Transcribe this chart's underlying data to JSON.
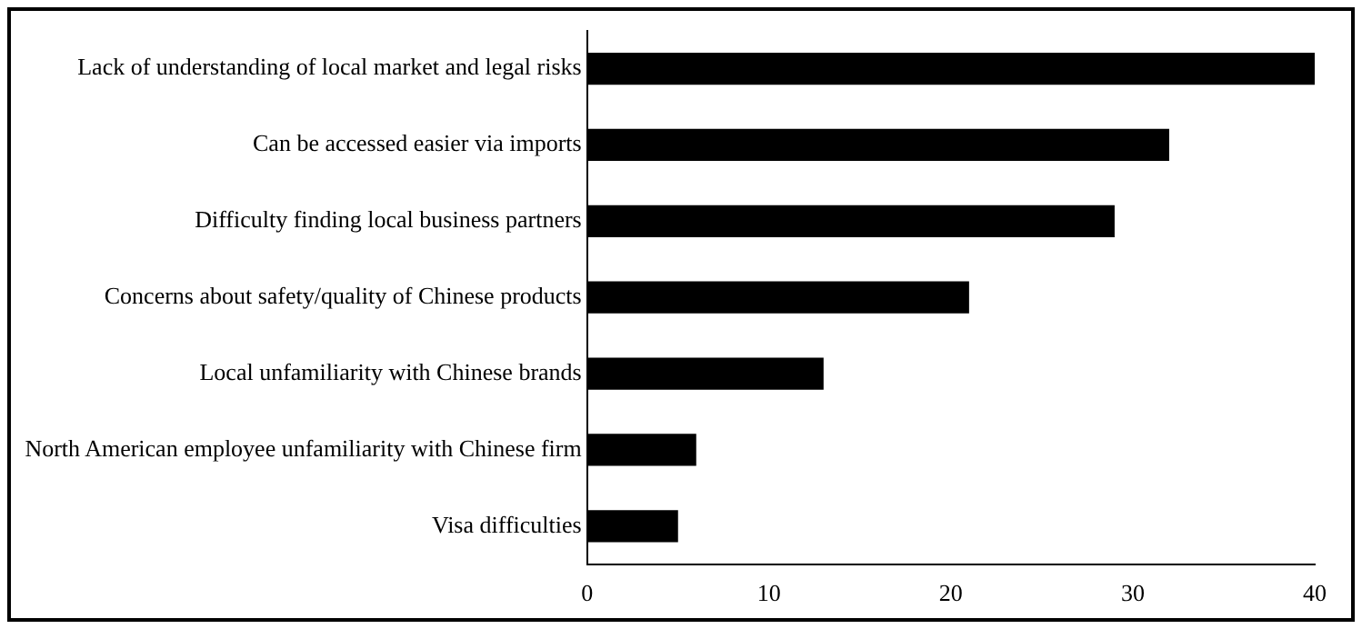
{
  "chart_data": {
    "type": "bar",
    "orientation": "horizontal",
    "categories": [
      "Lack of understanding of local market and legal risks",
      "Can be accessed easier via imports",
      "Difficulty finding local business partners",
      "Concerns about safety/quality of Chinese products",
      "Local unfamiliarity with Chinese brands",
      "North American employee unfamiliarity with Chinese firm",
      "Visa difficulties"
    ],
    "values": [
      40,
      32,
      29,
      21,
      13,
      6,
      5
    ],
    "color": "#000000",
    "xlim": [
      0,
      40
    ],
    "xticks": [
      0,
      10,
      20,
      30,
      40
    ],
    "grid": false,
    "legend": false
  }
}
